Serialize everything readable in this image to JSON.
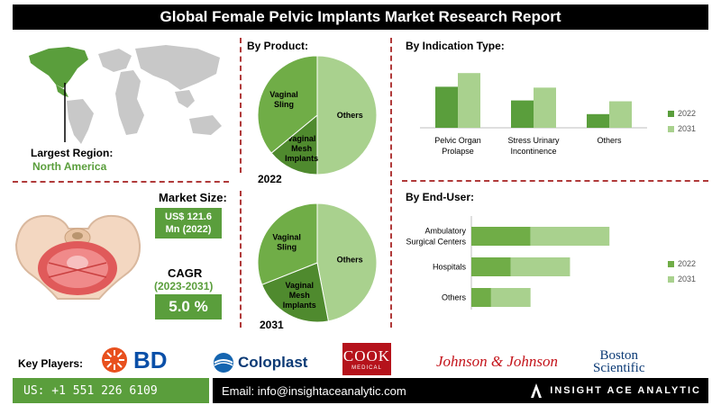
{
  "title": "Global Female Pelvic Implants Market Research Report",
  "region": {
    "label": "Largest Region:",
    "value": "North America"
  },
  "market_size": {
    "label": "Market Size:",
    "value_line1": "US$ 121.6",
    "value_line2": "Mn (2022)"
  },
  "cagr": {
    "label": "CAGR",
    "period": "(2023-2031)",
    "value": "5.0 %"
  },
  "by_product": {
    "title": "By Product:",
    "year_top": "2022",
    "year_bottom": "2031"
  },
  "by_indication": {
    "title": "By Indication Type:"
  },
  "by_end_user": {
    "title": "By End-User:"
  },
  "key_players": {
    "label": "Key Players:",
    "logos": [
      "BD",
      "Coloplast",
      "COOK",
      "MEDICAL",
      "Johnson & Johnson",
      "Boston",
      "Scientific"
    ]
  },
  "footer": {
    "phone": "US: +1 551 226 6109",
    "email": "Email: info@insightaceanalytic.com",
    "brand": "INSIGHT ACE ANALYTIC"
  },
  "colors": {
    "dark_green": "#5a9e3c",
    "light_green": "#a9d18e",
    "mid_green": "#70ad47",
    "black": "#000000"
  },
  "chart_data": [
    {
      "type": "pie",
      "title": "2022",
      "slices": [
        {
          "label": "Others",
          "value": 50
        },
        {
          "label": "Vaginal Mesh Implants",
          "value": 14
        },
        {
          "label": "Vaginal Sling",
          "value": 36
        }
      ]
    },
    {
      "type": "pie",
      "title": "2031",
      "slices": [
        {
          "label": "Others",
          "value": 47
        },
        {
          "label": "Vaginal Mesh Implants",
          "value": 22
        },
        {
          "label": "Vaginal Sling",
          "value": 31
        }
      ]
    },
    {
      "type": "bar",
      "title": "By Indication Type:",
      "categories": [
        "Pelvic Organ Prolapse",
        "Stress Urinary Incontinence",
        "Others"
      ],
      "series": [
        {
          "name": "2022",
          "values": [
            48,
            32,
            16
          ]
        },
        {
          "name": "2031",
          "values": [
            64,
            47,
            31
          ]
        }
      ],
      "ylim": [
        0,
        80
      ],
      "legend": "right"
    },
    {
      "type": "bar",
      "orientation": "horizontal-stacked",
      "title": "By End-User:",
      "categories": [
        "Ambulatory Surgical Centers",
        "Hospitals",
        "Others"
      ],
      "series": [
        {
          "name": "2022",
          "values": [
            60,
            40,
            20
          ]
        },
        {
          "name": "2031",
          "values": [
            80,
            60,
            40
          ]
        }
      ],
      "xlim": [
        0,
        180
      ],
      "legend": "right"
    }
  ]
}
